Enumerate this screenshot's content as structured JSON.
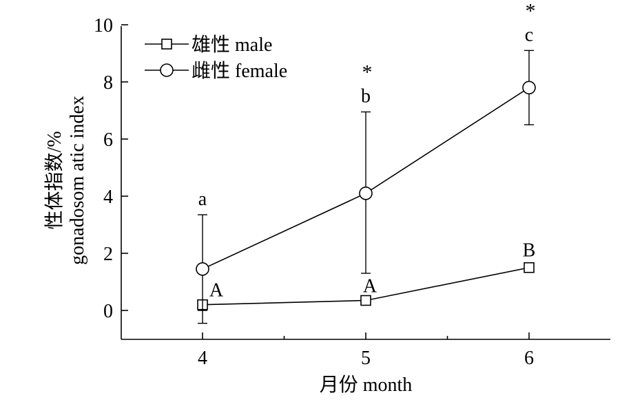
{
  "chart_data": {
    "type": "line",
    "title": "",
    "xlabel": "月份 month",
    "ylabel_line1": "性体指数/%",
    "ylabel_line2": "gonadosom atic index",
    "x": [
      4,
      5,
      6
    ],
    "x_tick_labels": [
      "4",
      "5",
      "6"
    ],
    "xlim": [
      3.5,
      6.5
    ],
    "ylim": [
      -1,
      10
    ],
    "y_ticks": [
      0,
      2,
      4,
      6,
      8,
      10
    ],
    "y_tick_labels": [
      "0",
      "2",
      "4",
      "6",
      "8",
      "10"
    ],
    "grid": false,
    "legend_position": "top-left",
    "series": [
      {
        "name": "雄性 male",
        "marker": "square",
        "values": [
          0.2,
          0.35,
          1.5
        ],
        "err_low": [
          -0.45,
          0.3,
          1.35
        ],
        "err_high": [
          0.2,
          0.4,
          1.65
        ],
        "letters": [
          "A",
          "A",
          "B"
        ],
        "stars": [
          "",
          "",
          ""
        ]
      },
      {
        "name": "雌性 female",
        "marker": "circle",
        "values": [
          1.45,
          4.1,
          7.8
        ],
        "err_low": [
          0.0,
          1.3,
          6.5
        ],
        "err_high": [
          3.35,
          6.95,
          9.1
        ],
        "letters": [
          "a",
          "b",
          "c"
        ],
        "stars": [
          "",
          "*",
          "*"
        ]
      }
    ]
  }
}
